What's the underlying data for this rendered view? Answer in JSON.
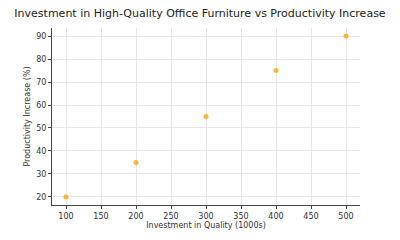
{
  "chart_data": {
    "type": "scatter",
    "title": "Investment in High-Quality Office Furniture vs Productivity Increase",
    "x_label": "Investment in Quality (1000s)",
    "y_label": "Productivity Increase (%)",
    "x": [
      100,
      200,
      300,
      400,
      500
    ],
    "values": [
      20,
      35,
      55,
      75,
      90
    ],
    "color": "#ffa500",
    "marker": "circle",
    "xlim": [
      80,
      520
    ],
    "xticks": [
      100,
      150,
      200,
      250,
      300,
      350,
      400,
      450,
      500
    ],
    "ylim": [
      16.5,
      93.5
    ],
    "yticks": [
      20,
      30,
      40,
      50,
      60,
      70,
      80,
      90
    ],
    "grid": true
  }
}
